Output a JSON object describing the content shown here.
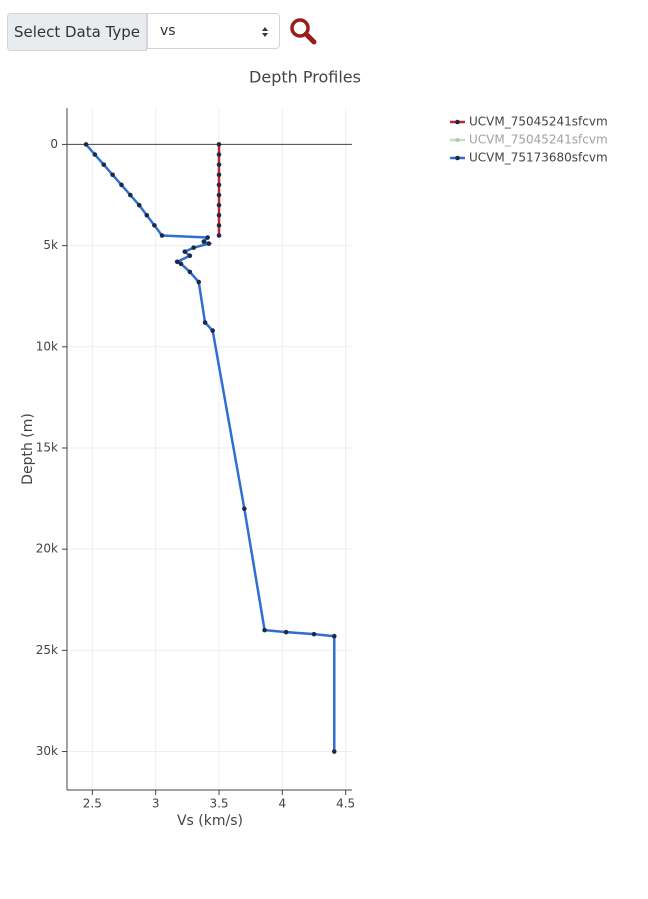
{
  "controls": {
    "button_label": "Select Data Type",
    "select_value": "vs"
  },
  "chart_data": {
    "type": "line",
    "title": "Depth Profiles",
    "x_label": "Vs (km/s)",
    "y_label": "Depth (m)",
    "xlim": [
      2.3,
      4.55
    ],
    "ylim": [
      31900,
      -1800
    ],
    "y_reversed": true,
    "xticks": [
      2.5,
      3,
      3.5,
      4,
      4.5
    ],
    "yticks": [
      0,
      {
        "value": 5000,
        "label": "5k"
      },
      {
        "value": 10000,
        "label": "10k"
      },
      {
        "value": 15000,
        "label": "15k"
      },
      {
        "value": 20000,
        "label": "20k"
      },
      {
        "value": 25000,
        "label": "25k"
      },
      {
        "value": 30000,
        "label": "30k"
      }
    ],
    "grid": true,
    "legend": "top-right",
    "marker_color": "#1b2a47",
    "series": [
      {
        "name": "UCVM_75045241sfcvm",
        "color": "#c0242d",
        "visible": true,
        "x": [
          3.5,
          3.5,
          3.5,
          3.5,
          3.5,
          3.5,
          3.5,
          3.5,
          3.5,
          3.5
        ],
        "y": [
          0,
          500,
          1000,
          1500,
          2000,
          2500,
          3000,
          3500,
          4000,
          4500
        ]
      },
      {
        "name": "UCVM_75045241sfcvm",
        "color": "#8fbf7f",
        "visible": false
      },
      {
        "name": "UCVM_75173680sfcvm",
        "color": "#2f6fd0",
        "visible": true,
        "x": [
          2.45,
          2.52,
          2.59,
          2.66,
          2.73,
          2.8,
          2.87,
          2.93,
          2.99,
          3.05,
          3.41,
          3.38,
          3.42,
          3.3,
          3.23,
          3.27,
          3.17,
          3.2,
          3.27,
          3.34,
          3.39,
          3.45,
          3.7,
          3.86,
          4.03,
          4.25,
          4.41,
          4.41
        ],
        "y": [
          0,
          500,
          1000,
          1500,
          2000,
          2500,
          3000,
          3500,
          4000,
          4500,
          4600,
          4800,
          4900,
          5100,
          5300,
          5500,
          5800,
          5900,
          6300,
          6800,
          8800,
          9200,
          18000,
          24000,
          24100,
          24200,
          24300,
          30000
        ]
      }
    ]
  }
}
